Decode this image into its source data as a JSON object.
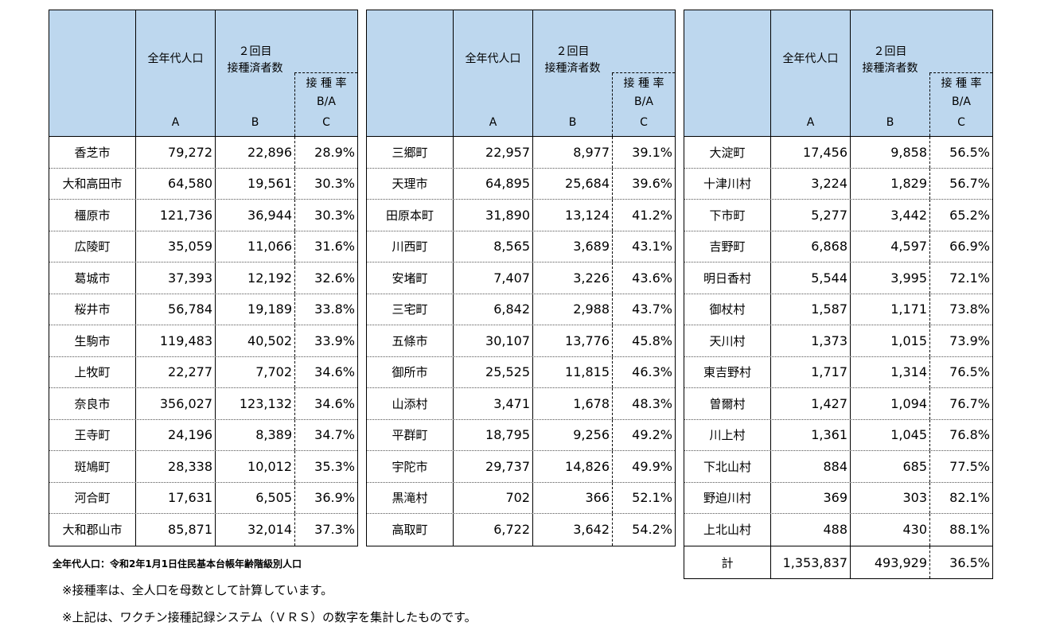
{
  "headers": {
    "population": "全年代人口",
    "vaccinated_line1": "２回目",
    "vaccinated_line2": "接種済者数",
    "rate_line1": "接 種 率",
    "rate_line2": "B/A",
    "letter_a": "A",
    "letter_b": "B",
    "letter_c": "C"
  },
  "tables": [
    {
      "rows": [
        {
          "name": "香芝市",
          "a": "79,272",
          "b": "22,896",
          "c": "28.9%"
        },
        {
          "name": "大和高田市",
          "a": "64,580",
          "b": "19,561",
          "c": "30.3%"
        },
        {
          "name": "橿原市",
          "a": "121,736",
          "b": "36,944",
          "c": "30.3%"
        },
        {
          "name": "広陵町",
          "a": "35,059",
          "b": "11,066",
          "c": "31.6%"
        },
        {
          "name": "葛城市",
          "a": "37,393",
          "b": "12,192",
          "c": "32.6%"
        },
        {
          "name": "桜井市",
          "a": "56,784",
          "b": "19,189",
          "c": "33.8%"
        },
        {
          "name": "生駒市",
          "a": "119,483",
          "b": "40,502",
          "c": "33.9%"
        },
        {
          "name": "上牧町",
          "a": "22,277",
          "b": "7,702",
          "c": "34.6%"
        },
        {
          "name": "奈良市",
          "a": "356,027",
          "b": "123,132",
          "c": "34.6%"
        },
        {
          "name": "王寺町",
          "a": "24,196",
          "b": "8,389",
          "c": "34.7%"
        },
        {
          "name": "斑鳩町",
          "a": "28,338",
          "b": "10,012",
          "c": "35.3%"
        },
        {
          "name": "河合町",
          "a": "17,631",
          "b": "6,505",
          "c": "36.9%"
        },
        {
          "name": "大和郡山市",
          "a": "85,871",
          "b": "32,014",
          "c": "37.3%"
        }
      ]
    },
    {
      "rows": [
        {
          "name": "三郷町",
          "a": "22,957",
          "b": "8,977",
          "c": "39.1%"
        },
        {
          "name": "天理市",
          "a": "64,895",
          "b": "25,684",
          "c": "39.6%"
        },
        {
          "name": "田原本町",
          "a": "31,890",
          "b": "13,124",
          "c": "41.2%"
        },
        {
          "name": "川西町",
          "a": "8,565",
          "b": "3,689",
          "c": "43.1%"
        },
        {
          "name": "安堵町",
          "a": "7,407",
          "b": "3,226",
          "c": "43.6%"
        },
        {
          "name": "三宅町",
          "a": "6,842",
          "b": "2,988",
          "c": "43.7%"
        },
        {
          "name": "五條市",
          "a": "30,107",
          "b": "13,776",
          "c": "45.8%"
        },
        {
          "name": "御所市",
          "a": "25,525",
          "b": "11,815",
          "c": "46.3%"
        },
        {
          "name": "山添村",
          "a": "3,471",
          "b": "1,678",
          "c": "48.3%"
        },
        {
          "name": "平群町",
          "a": "18,795",
          "b": "9,256",
          "c": "49.2%"
        },
        {
          "name": "宇陀市",
          "a": "29,737",
          "b": "14,826",
          "c": "49.9%"
        },
        {
          "name": "黒滝村",
          "a": "702",
          "b": "366",
          "c": "52.1%"
        },
        {
          "name": "高取町",
          "a": "6,722",
          "b": "3,642",
          "c": "54.2%"
        }
      ]
    },
    {
      "rows": [
        {
          "name": "大淀町",
          "a": "17,456",
          "b": "9,858",
          "c": "56.5%"
        },
        {
          "name": "十津川村",
          "a": "3,224",
          "b": "1,829",
          "c": "56.7%"
        },
        {
          "name": "下市町",
          "a": "5,277",
          "b": "3,442",
          "c": "65.2%"
        },
        {
          "name": "吉野町",
          "a": "6,868",
          "b": "4,597",
          "c": "66.9%"
        },
        {
          "name": "明日香村",
          "a": "5,544",
          "b": "3,995",
          "c": "72.1%"
        },
        {
          "name": "御杖村",
          "a": "1,587",
          "b": "1,171",
          "c": "73.8%"
        },
        {
          "name": "天川村",
          "a": "1,373",
          "b": "1,015",
          "c": "73.9%"
        },
        {
          "name": "東吉野村",
          "a": "1,717",
          "b": "1,314",
          "c": "76.5%"
        },
        {
          "name": "曽爾村",
          "a": "1,427",
          "b": "1,094",
          "c": "76.7%"
        },
        {
          "name": "川上村",
          "a": "1,361",
          "b": "1,045",
          "c": "76.8%"
        },
        {
          "name": "下北山村",
          "a": "884",
          "b": "685",
          "c": "77.5%"
        },
        {
          "name": "野迫川村",
          "a": "369",
          "b": "303",
          "c": "82.1%"
        },
        {
          "name": "上北山村",
          "a": "488",
          "b": "430",
          "c": "88.1%"
        }
      ]
    }
  ],
  "total": {
    "name": "計",
    "a": "1,353,837",
    "b": "493,929",
    "c": "36.5%"
  },
  "notes": [
    "全年代人口：令和2年1月1日住民基本台帳年齢階級別人口",
    "※接種率は、全人口を母数として計算しています。",
    "※上記は、ワクチン接種記録システム（ＶＲＳ）の数字を集計したものです。"
  ]
}
